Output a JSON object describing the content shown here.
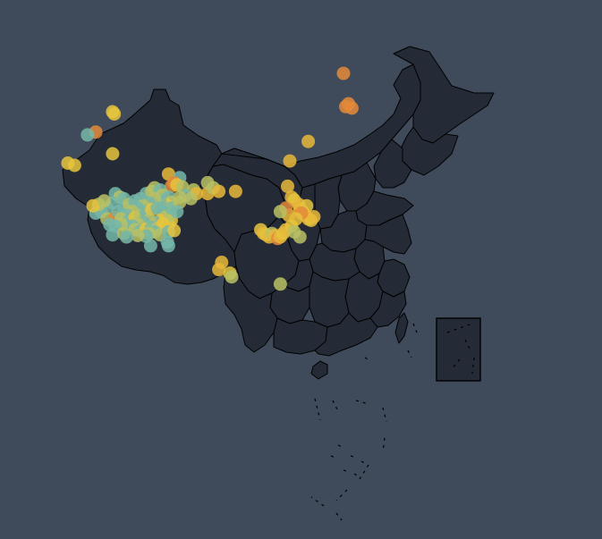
{
  "map": {
    "background": "#3f4a5a",
    "land_color": "#242a36",
    "border_color": "#000000",
    "legend": "none"
  },
  "colors": {
    "orange": "#e48a3a",
    "gold": "#e8b83a",
    "yellow": "#e6c43d",
    "olive": "#b9c164",
    "teal": "#76b7a8"
  },
  "marker_opacity": 0.85,
  "markers": [
    {
      "lon": 124.8,
      "lat": 52.1,
      "color": "orange"
    },
    {
      "lon": 125.7,
      "lat": 47.9,
      "color": "orange"
    },
    {
      "lon": 126.3,
      "lat": 47.3,
      "color": "orange"
    },
    {
      "lon": 125.2,
      "lat": 47.5,
      "color": "orange"
    },
    {
      "lon": 118.5,
      "lat": 42.7,
      "color": "gold"
    },
    {
      "lon": 115.2,
      "lat": 40.0,
      "color": "gold"
    },
    {
      "lon": 83.5,
      "lat": 46.8,
      "color": "yellow"
    },
    {
      "lon": 83.8,
      "lat": 46.5,
      "color": "yellow"
    },
    {
      "lon": 80.5,
      "lat": 44.0,
      "color": "orange"
    },
    {
      "lon": 79.0,
      "lat": 43.6,
      "color": "teal"
    },
    {
      "lon": 83.5,
      "lat": 41.0,
      "color": "yellow"
    },
    {
      "lon": 75.5,
      "lat": 39.7,
      "color": "yellow"
    },
    {
      "lon": 76.7,
      "lat": 39.4,
      "color": "yellow"
    },
    {
      "lon": 93.5,
      "lat": 38.2,
      "color": "gold"
    },
    {
      "lon": 95.5,
      "lat": 37.7,
      "color": "teal"
    },
    {
      "lon": 94.5,
      "lat": 37.0,
      "color": "orange"
    },
    {
      "lon": 94.0,
      "lat": 36.5,
      "color": "orange"
    },
    {
      "lon": 95.0,
      "lat": 36.7,
      "color": "yellow"
    },
    {
      "lon": 96.0,
      "lat": 36.4,
      "color": "olive"
    },
    {
      "lon": 98.0,
      "lat": 36.0,
      "color": "olive"
    },
    {
      "lon": 98.5,
      "lat": 35.5,
      "color": "gold"
    },
    {
      "lon": 100.5,
      "lat": 35.5,
      "color": "gold"
    },
    {
      "lon": 96.5,
      "lat": 35.2,
      "color": "teal"
    },
    {
      "lon": 95.5,
      "lat": 35.0,
      "color": "olive"
    },
    {
      "lon": 97.5,
      "lat": 34.8,
      "color": "olive"
    },
    {
      "lon": 84.0,
      "lat": 35.5,
      "color": "teal"
    },
    {
      "lon": 84.8,
      "lat": 35.0,
      "color": "olive"
    },
    {
      "lon": 85.5,
      "lat": 34.8,
      "color": "teal"
    },
    {
      "lon": 83.5,
      "lat": 34.2,
      "color": "teal"
    },
    {
      "lon": 82.5,
      "lat": 33.5,
      "color": "teal"
    },
    {
      "lon": 81.5,
      "lat": 33.0,
      "color": "teal"
    },
    {
      "lon": 80.5,
      "lat": 32.8,
      "color": "teal"
    },
    {
      "lon": 81.0,
      "lat": 34.0,
      "color": "olive"
    },
    {
      "lon": 80.0,
      "lat": 33.8,
      "color": "yellow"
    },
    {
      "lon": 82.0,
      "lat": 34.5,
      "color": "olive"
    },
    {
      "lon": 82.5,
      "lat": 32.0,
      "color": "olive"
    },
    {
      "lon": 84.0,
      "lat": 32.2,
      "color": "orange"
    },
    {
      "lon": 84.5,
      "lat": 33.0,
      "color": "teal"
    },
    {
      "lon": 85.5,
      "lat": 33.5,
      "color": "teal"
    },
    {
      "lon": 86.5,
      "lat": 34.0,
      "color": "olive"
    },
    {
      "lon": 87.5,
      "lat": 34.5,
      "color": "teal"
    },
    {
      "lon": 88.5,
      "lat": 34.8,
      "color": "teal"
    },
    {
      "lon": 89.5,
      "lat": 35.5,
      "color": "teal"
    },
    {
      "lon": 90.5,
      "lat": 35.8,
      "color": "olive"
    },
    {
      "lon": 91.0,
      "lat": 36.3,
      "color": "olive"
    },
    {
      "lon": 92.0,
      "lat": 36.0,
      "color": "teal"
    },
    {
      "lon": 92.5,
      "lat": 35.3,
      "color": "olive"
    },
    {
      "lon": 93.5,
      "lat": 35.0,
      "color": "teal"
    },
    {
      "lon": 94.0,
      "lat": 34.3,
      "color": "olive"
    },
    {
      "lon": 93.0,
      "lat": 34.0,
      "color": "yellow"
    },
    {
      "lon": 92.0,
      "lat": 34.5,
      "color": "teal"
    },
    {
      "lon": 91.0,
      "lat": 34.8,
      "color": "olive"
    },
    {
      "lon": 90.0,
      "lat": 34.2,
      "color": "teal"
    },
    {
      "lon": 89.0,
      "lat": 33.8,
      "color": "olive"
    },
    {
      "lon": 88.0,
      "lat": 33.5,
      "color": "teal"
    },
    {
      "lon": 87.0,
      "lat": 33.0,
      "color": "olive"
    },
    {
      "lon": 86.0,
      "lat": 32.5,
      "color": "teal"
    },
    {
      "lon": 85.0,
      "lat": 32.0,
      "color": "olive"
    },
    {
      "lon": 86.5,
      "lat": 31.8,
      "color": "teal"
    },
    {
      "lon": 87.5,
      "lat": 32.2,
      "color": "yellow"
    },
    {
      "lon": 88.5,
      "lat": 32.5,
      "color": "olive"
    },
    {
      "lon": 89.5,
      "lat": 33.0,
      "color": "teal"
    },
    {
      "lon": 90.5,
      "lat": 33.3,
      "color": "yellow"
    },
    {
      "lon": 91.5,
      "lat": 33.5,
      "color": "teal"
    },
    {
      "lon": 92.5,
      "lat": 33.0,
      "color": "teal"
    },
    {
      "lon": 93.0,
      "lat": 32.3,
      "color": "olive"
    },
    {
      "lon": 92.0,
      "lat": 31.8,
      "color": "yellow"
    },
    {
      "lon": 91.0,
      "lat": 31.5,
      "color": "teal"
    },
    {
      "lon": 90.0,
      "lat": 31.8,
      "color": "olive"
    },
    {
      "lon": 89.0,
      "lat": 31.5,
      "color": "teal"
    },
    {
      "lon": 88.0,
      "lat": 31.3,
      "color": "olive"
    },
    {
      "lon": 87.0,
      "lat": 31.0,
      "color": "teal"
    },
    {
      "lon": 86.0,
      "lat": 31.0,
      "color": "teal"
    },
    {
      "lon": 85.0,
      "lat": 31.3,
      "color": "olive"
    },
    {
      "lon": 84.0,
      "lat": 31.0,
      "color": "teal"
    },
    {
      "lon": 83.0,
      "lat": 31.2,
      "color": "teal"
    },
    {
      "lon": 87.5,
      "lat": 30.5,
      "color": "olive"
    },
    {
      "lon": 88.5,
      "lat": 30.3,
      "color": "teal"
    },
    {
      "lon": 89.5,
      "lat": 30.6,
      "color": "yellow"
    },
    {
      "lon": 90.5,
      "lat": 30.8,
      "color": "teal"
    },
    {
      "lon": 91.5,
      "lat": 30.7,
      "color": "olive"
    },
    {
      "lon": 92.5,
      "lat": 30.9,
      "color": "yellow"
    },
    {
      "lon": 93.5,
      "lat": 31.2,
      "color": "olive"
    },
    {
      "lon": 94.0,
      "lat": 31.8,
      "color": "yellow"
    },
    {
      "lon": 93.8,
      "lat": 32.5,
      "color": "olive"
    },
    {
      "lon": 92.5,
      "lat": 31.3,
      "color": "yellow"
    },
    {
      "lon": 91.0,
      "lat": 30.2,
      "color": "teal"
    },
    {
      "lon": 90.0,
      "lat": 30.0,
      "color": "olive"
    },
    {
      "lon": 89.5,
      "lat": 29.6,
      "color": "teal"
    },
    {
      "lon": 88.0,
      "lat": 29.7,
      "color": "olive"
    },
    {
      "lon": 92.0,
      "lat": 29.8,
      "color": "olive"
    },
    {
      "lon": 93.5,
      "lat": 30.2,
      "color": "teal"
    },
    {
      "lon": 94.5,
      "lat": 30.4,
      "color": "yellow"
    },
    {
      "lon": 90.3,
      "lat": 28.3,
      "color": "teal"
    },
    {
      "lon": 93.3,
      "lat": 28.8,
      "color": "teal"
    },
    {
      "lon": 93.5,
      "lat": 28.3,
      "color": "teal"
    },
    {
      "lon": 83.5,
      "lat": 29.8,
      "color": "teal"
    },
    {
      "lon": 85.5,
      "lat": 30.0,
      "color": "olive"
    },
    {
      "lon": 86.0,
      "lat": 29.5,
      "color": "teal"
    },
    {
      "lon": 94.0,
      "lat": 33.5,
      "color": "teal"
    },
    {
      "lon": 95.5,
      "lat": 34.3,
      "color": "olive"
    },
    {
      "lon": 95.0,
      "lat": 33.0,
      "color": "teal"
    },
    {
      "lon": 100.5,
      "lat": 37.0,
      "color": "olive"
    },
    {
      "lon": 101.5,
      "lat": 36.3,
      "color": "olive"
    },
    {
      "lon": 102.5,
      "lat": 35.8,
      "color": "gold"
    },
    {
      "lon": 105.5,
      "lat": 35.8,
      "color": "gold"
    },
    {
      "lon": 103.0,
      "lat": 26.0,
      "color": "gold"
    },
    {
      "lon": 102.5,
      "lat": 25.0,
      "color": "gold"
    },
    {
      "lon": 104.5,
      "lat": 24.5,
      "color": "yellow"
    },
    {
      "lon": 104.8,
      "lat": 24.0,
      "color": "olive"
    },
    {
      "lon": 113.5,
      "lat": 23.0,
      "color": "olive"
    },
    {
      "lon": 114.8,
      "lat": 36.5,
      "color": "gold"
    },
    {
      "lon": 115.5,
      "lat": 35.0,
      "color": "gold"
    },
    {
      "lon": 116.0,
      "lat": 34.6,
      "color": "yellow"
    },
    {
      "lon": 116.8,
      "lat": 34.0,
      "color": "gold"
    },
    {
      "lon": 117.0,
      "lat": 33.3,
      "color": "gold"
    },
    {
      "lon": 117.5,
      "lat": 33.0,
      "color": "gold"
    },
    {
      "lon": 118.0,
      "lat": 32.5,
      "color": "gold"
    },
    {
      "lon": 118.5,
      "lat": 32.0,
      "color": "gold"
    },
    {
      "lon": 119.0,
      "lat": 31.8,
      "color": "yellow"
    },
    {
      "lon": 119.5,
      "lat": 32.3,
      "color": "gold"
    },
    {
      "lon": 118.2,
      "lat": 33.8,
      "color": "yellow"
    },
    {
      "lon": 117.3,
      "lat": 32.8,
      "color": "orange"
    },
    {
      "lon": 116.3,
      "lat": 32.0,
      "color": "yellow"
    },
    {
      "lon": 115.0,
      "lat": 32.5,
      "color": "gold"
    },
    {
      "lon": 114.5,
      "lat": 33.5,
      "color": "orange"
    },
    {
      "lon": 113.5,
      "lat": 33.0,
      "color": "olive"
    },
    {
      "lon": 110.0,
      "lat": 30.5,
      "color": "yellow"
    },
    {
      "lon": 110.5,
      "lat": 30.0,
      "color": "gold"
    },
    {
      "lon": 111.0,
      "lat": 29.8,
      "color": "yellow"
    },
    {
      "lon": 111.5,
      "lat": 29.5,
      "color": "gold"
    },
    {
      "lon": 112.0,
      "lat": 30.0,
      "color": "olive"
    },
    {
      "lon": 112.5,
      "lat": 29.7,
      "color": "gold"
    },
    {
      "lon": 113.0,
      "lat": 29.3,
      "color": "orange"
    },
    {
      "lon": 113.5,
      "lat": 29.5,
      "color": "gold"
    },
    {
      "lon": 114.0,
      "lat": 30.0,
      "color": "yellow"
    },
    {
      "lon": 114.5,
      "lat": 30.5,
      "color": "gold"
    },
    {
      "lon": 115.5,
      "lat": 31.0,
      "color": "yellow"
    },
    {
      "lon": 116.0,
      "lat": 30.2,
      "color": "olive"
    },
    {
      "lon": 117.0,
      "lat": 29.5,
      "color": "olive"
    }
  ]
}
